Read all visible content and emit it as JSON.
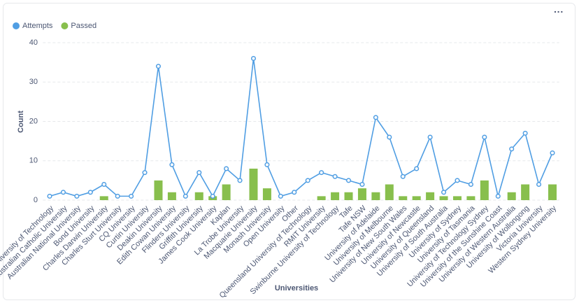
{
  "chart_data": {
    "type": "bar-line",
    "x_label": "Universities",
    "y_label": "Count",
    "categories": [
      "Auckland University of Technology",
      "Australian Catholic University",
      "Australian National University",
      "Bond University",
      "Charles Darwin University",
      "Charles Sturt University",
      "CQ University",
      "Curtin University",
      "Deakin University",
      "Edith Cowan University",
      "Flinders University",
      "Griffith University",
      "James Cook University",
      "Kaplan",
      "La Trobe University",
      "Macquarie University",
      "Monash University",
      "Open University",
      "Other",
      "Queensland University of Technology",
      "RMIT University",
      "Swinburne University of Technology",
      "Tafe",
      "Tafe NSW",
      "University of Adelaide",
      "University of Melbourne",
      "University of New South Wales",
      "University of Newcastle",
      "University of Queensland",
      "University of South Australia",
      "University of Sydney",
      "University of Tasmania",
      "University of Technology Sydney",
      "University of the Sunshine Coast",
      "University of Western Australia",
      "University of Wollongong",
      "Victoria University",
      "Western Sydney University"
    ],
    "series": [
      {
        "name": "Attempts",
        "color": "#509ee3",
        "kind": "line",
        "values": [
          1,
          2,
          1,
          2,
          4,
          1,
          1,
          7,
          34,
          9,
          1,
          7,
          1,
          8,
          5,
          36,
          9,
          1,
          2,
          5,
          7,
          6,
          5,
          4,
          21,
          16,
          6,
          8,
          16,
          2,
          5,
          4,
          16,
          1,
          13,
          17,
          4,
          12
        ]
      },
      {
        "name": "Passed",
        "color": "#88bf4d",
        "kind": "bar",
        "values": [
          0,
          0,
          0,
          0,
          1,
          0,
          0,
          0,
          5,
          2,
          0,
          2,
          1,
          4,
          0,
          8,
          3,
          0,
          0,
          0,
          1,
          2,
          2,
          3,
          2,
          4,
          1,
          1,
          2,
          1,
          1,
          1,
          5,
          0,
          2,
          4,
          0,
          4
        ]
      }
    ],
    "ylim": [
      0,
      40
    ],
    "yticks": [
      0,
      10,
      20,
      30,
      40
    ],
    "grid": true,
    "legend": "top-left"
  }
}
